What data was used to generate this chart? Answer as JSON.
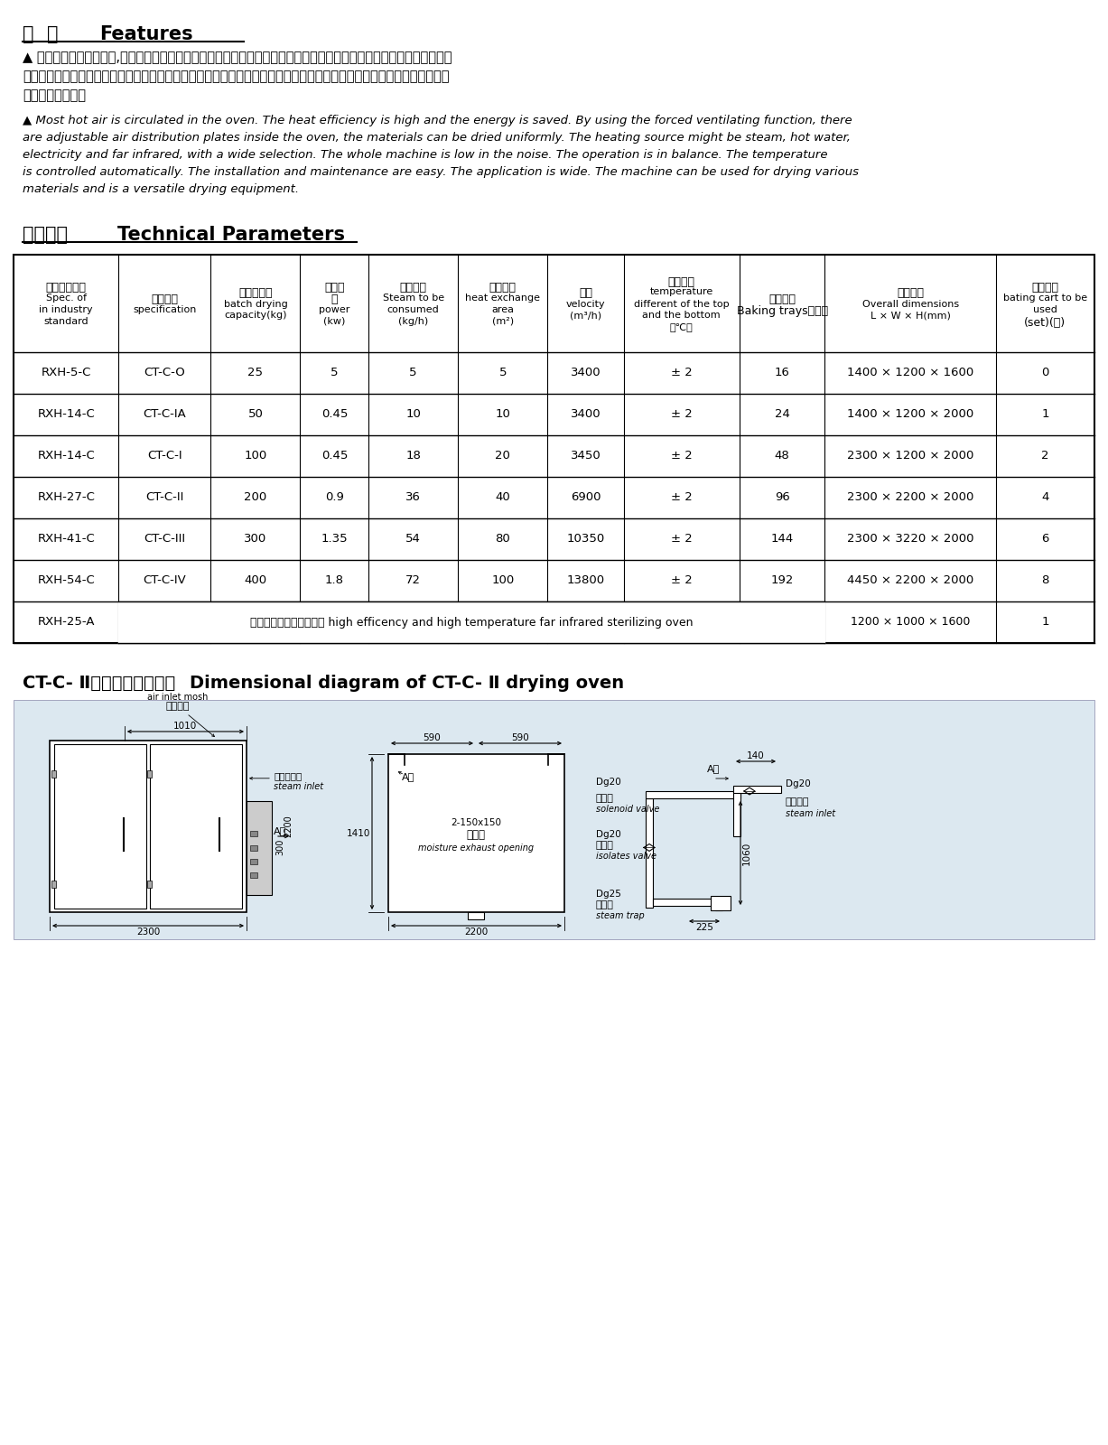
{
  "bg_color": "#ffffff",
  "section1_title_cn": "特  点",
  "section1_title_en": "Features",
  "cn_lines": [
    "▲ 大部分热风在筱内循环,热效率高，节约能源。利用强制通风作用，筱内设有可调式分风板，物料干燥均匀。热源可采用",
    "蒸汽、热水、电、远红外，选择广泛。整机噪音小，运转平衡，温度自控，安装维修方便。适用范围广，可干燥各种物料，",
    "是通用干燥设备。"
  ],
  "en_lines": [
    "▲ Most hot air is circulated in the oven. The heat efficiency is high and the energy is saved. By using the forced ventilating function, there",
    "are adjustable air distribution plates inside the oven, the materials can be dried uniformly. The heating source might be steam, hot water,",
    "electricity and far infrared, with a wide selection. The whole machine is low in the noise. The operation is in balance. The temperature",
    "is controlled automatically. The installation and maintenance are easy. The application is wide. The machine can be used for drying various",
    "materials and is a versatile drying equipment."
  ],
  "section2_title_cn": "技术参数",
  "section2_title_en": "Technical Parameters",
  "col_headers": [
    [
      "行业标准型号",
      "Spec. of",
      "in industry",
      "standard"
    ],
    [
      "型号规格",
      "specification"
    ],
    [
      "每次干燥量",
      "batch drying",
      "capacity(kg)"
    ],
    [
      "配用功",
      "率",
      "power",
      "(kw)"
    ],
    [
      "耗用蕊汽",
      "Steam to be",
      "consumed",
      "(kg/h)"
    ],
    [
      "散热面积",
      "heat exchange",
      "area",
      "(m²)"
    ],
    [
      "风量",
      "velocity",
      "(m³/h)"
    ],
    [
      "上下温差",
      "temperature",
      "different of the top",
      "and the bottom",
      "（℃）"
    ],
    [
      "配用烘盘",
      "Baking trays（只）"
    ],
    [
      "外形尺寸",
      "Overall dimensions",
      "L × W × H(mm)"
    ],
    [
      "配用烘车",
      "bating cart to be",
      "used",
      "(set)(辆)"
    ]
  ],
  "table_rows": [
    [
      "RXH-5-C",
      "CT-C-O",
      "25",
      "5",
      "5",
      "5",
      "3400",
      "± 2",
      "16",
      "1400 × 1200 × 1600",
      "0"
    ],
    [
      "RXH-14-C",
      "CT-C-IA",
      "50",
      "0.45",
      "10",
      "10",
      "3400",
      "± 2",
      "24",
      "1400 × 1200 × 2000",
      "1"
    ],
    [
      "RXH-14-C",
      "CT-C-I",
      "100",
      "0.45",
      "18",
      "20",
      "3450",
      "± 2",
      "48",
      "2300 × 1200 × 2000",
      "2"
    ],
    [
      "RXH-27-C",
      "CT-C-II",
      "200",
      "0.9",
      "36",
      "40",
      "6900",
      "± 2",
      "96",
      "2300 × 2200 × 2000",
      "4"
    ],
    [
      "RXH-41-C",
      "CT-C-III",
      "300",
      "1.35",
      "54",
      "80",
      "10350",
      "± 2",
      "144",
      "2300 × 3220 × 2000",
      "6"
    ],
    [
      "RXH-54-C",
      "CT-C-IV",
      "400",
      "1.8",
      "72",
      "100",
      "13800",
      "± 2",
      "192",
      "4450 × 2200 × 2000",
      "8"
    ]
  ],
  "special_row": [
    "RXH-25-A",
    "高效高温远红外灭菌烘筱 high efficency and high temperature far infrared sterilizing oven",
    "1200 × 1000 × 1600",
    "1"
  ],
  "section3_title_cn": "CT-C- Ⅱ型烘筱尺寸示意图",
  "section3_title_en": "Dimensional diagram of CT-C- Ⅱ drying oven"
}
